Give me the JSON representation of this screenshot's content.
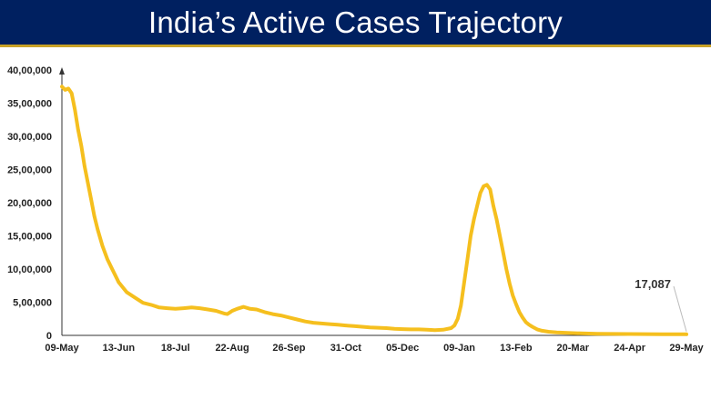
{
  "header": {
    "title": "India’s Active Cases Trajectory",
    "bg_color": "#002060",
    "title_color": "#ffffff"
  },
  "chart_data": {
    "type": "line",
    "title": "India’s Active Cases Trajectory",
    "xlabel": "",
    "ylabel": "",
    "ylim": [
      0,
      4000000
    ],
    "yticks": [
      0,
      500000,
      1000000,
      1500000,
      2000000,
      2500000,
      3000000,
      3500000,
      4000000
    ],
    "ytick_labels": [
      "0",
      "5,00,000",
      "10,00,000",
      "15,00,000",
      "20,00,000",
      "25,00,000",
      "30,00,000",
      "35,00,000",
      "40,00,000"
    ],
    "xtick_labels": [
      "09-May",
      "13-Jun",
      "18-Jul",
      "22-Aug",
      "26-Sep",
      "31-Oct",
      "05-Dec",
      "09-Jan",
      "13-Feb",
      "20-Mar",
      "24-Apr",
      "29-May"
    ],
    "xlim_days": [
      0,
      385
    ],
    "line_color": "#f5bf1e",
    "grid": false,
    "annotation": {
      "text": "17,087",
      "x_day": 385,
      "y": 17087
    },
    "series": [
      {
        "x": [
          0,
          2,
          4,
          6,
          8,
          10,
          12,
          14,
          16,
          18,
          20,
          22,
          25,
          28,
          31,
          35,
          40,
          45,
          50,
          55,
          60,
          65,
          70,
          75,
          80,
          85,
          90,
          95,
          100,
          102,
          105,
          108,
          112,
          116,
          120,
          125,
          130,
          135,
          140,
          145,
          150,
          155,
          160,
          165,
          170,
          175,
          180,
          185,
          190,
          195,
          200,
          205,
          210,
          215,
          220,
          225,
          230,
          235,
          240,
          242,
          244,
          246,
          248,
          250,
          252,
          254,
          256,
          258,
          260,
          262,
          264,
          266,
          268,
          270,
          272,
          274,
          276,
          278,
          280,
          282,
          284,
          286,
          288,
          290,
          293,
          296,
          300,
          305,
          310,
          320,
          330,
          340,
          350,
          360,
          370,
          380,
          385
        ],
        "y": [
          3750000,
          3700000,
          3720000,
          3650000,
          3400000,
          3100000,
          2850000,
          2550000,
          2300000,
          2050000,
          1800000,
          1600000,
          1350000,
          1150000,
          1000000,
          800000,
          650000,
          570000,
          490000,
          460000,
          420000,
          410000,
          400000,
          410000,
          420000,
          410000,
          390000,
          370000,
          330000,
          320000,
          370000,
          400000,
          430000,
          400000,
          390000,
          350000,
          320000,
          300000,
          270000,
          240000,
          210000,
          190000,
          180000,
          170000,
          160000,
          150000,
          140000,
          130000,
          120000,
          115000,
          110000,
          100000,
          95000,
          90000,
          90000,
          85000,
          80000,
          85000,
          110000,
          150000,
          250000,
          450000,
          800000,
          1150000,
          1500000,
          1750000,
          1950000,
          2150000,
          2250000,
          2270000,
          2200000,
          1950000,
          1750000,
          1500000,
          1250000,
          1000000,
          780000,
          600000,
          470000,
          350000,
          270000,
          200000,
          160000,
          130000,
          90000,
          70000,
          55000,
          45000,
          40000,
          30000,
          25000,
          22000,
          20000,
          19000,
          18000,
          17500,
          17087
        ]
      }
    ]
  }
}
